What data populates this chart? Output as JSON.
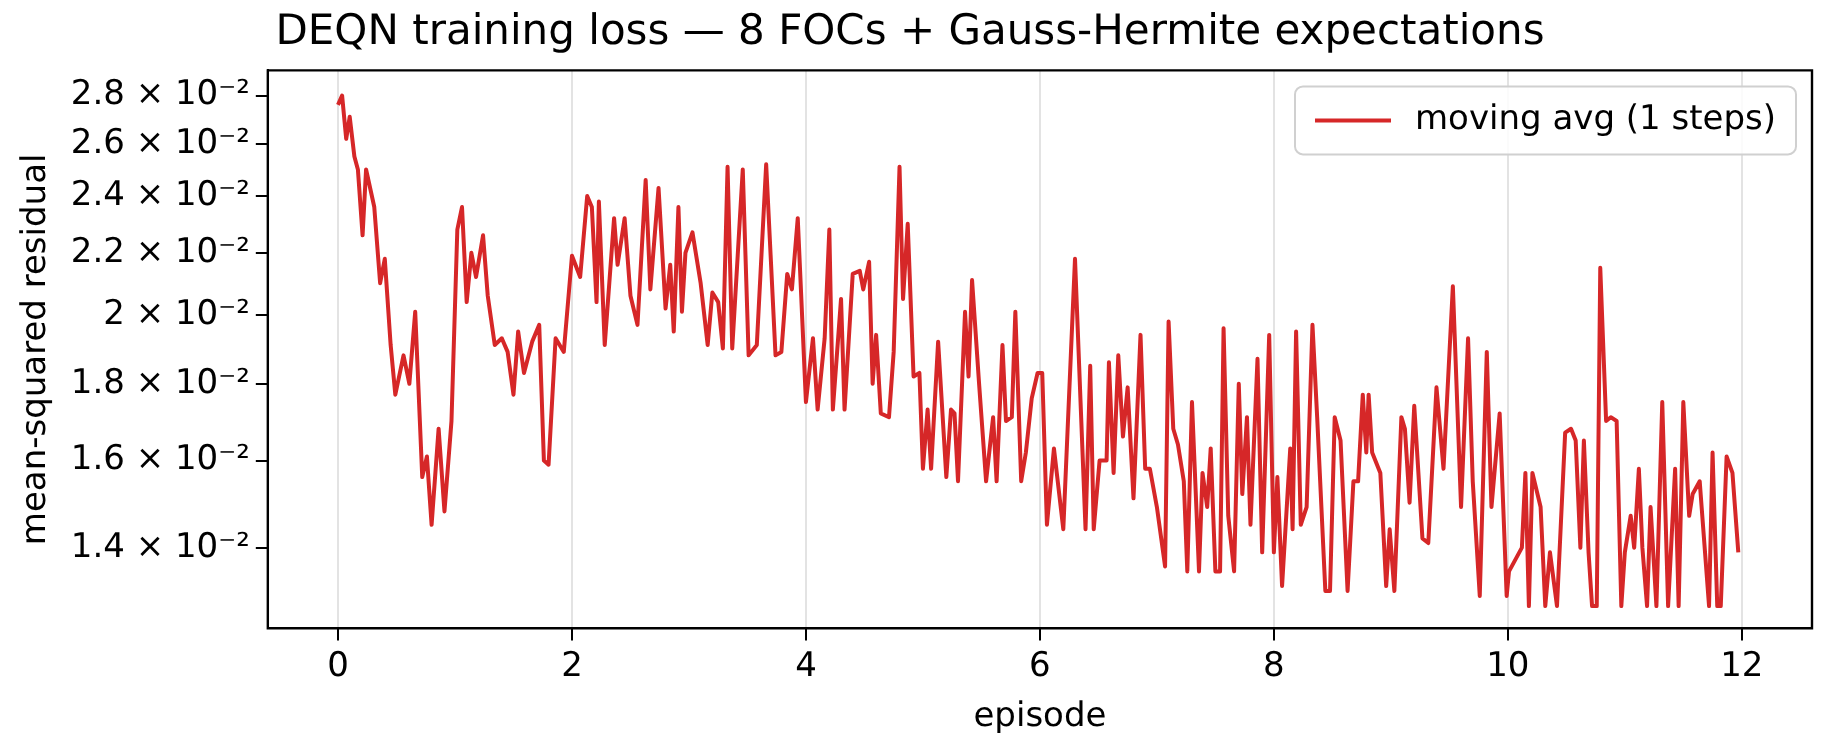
{
  "chart_data": {
    "type": "line",
    "title": "DEQN training loss — 8 FOCs + Gauss-Hermite expectations",
    "xlabel": "episode",
    "ylabel": "mean-squared residual",
    "log": "y",
    "grid": "x",
    "legend": "top right",
    "xlim": [
      -0.6,
      12.6
    ],
    "xticks": [
      0,
      2,
      4,
      6,
      8,
      10,
      12
    ],
    "ylim": [
      0.01237,
      0.0291
    ],
    "yticks": [
      {
        "value": 0.014,
        "label": "1.4 × 10⁻²"
      },
      {
        "value": 0.016,
        "label": "1.6 × 10⁻²"
      },
      {
        "value": 0.018,
        "label": "1.8 × 10⁻²"
      },
      {
        "value": 0.02,
        "label": "2 × 10⁻²"
      },
      {
        "value": 0.022,
        "label": "2.2 × 10⁻²"
      },
      {
        "value": 0.024,
        "label": "2.4 × 10⁻²"
      },
      {
        "value": 0.026,
        "label": "2.6 × 10⁻²"
      },
      {
        "value": 0.028,
        "label": "2.8 × 10⁻²"
      }
    ],
    "series": [
      {
        "name": "moving avg (1 steps)",
        "color": "#d62728",
        "x": [
          0,
          0.035,
          0.07,
          0.1,
          0.14,
          0.17,
          0.21,
          0.24,
          0.31,
          0.36,
          0.4,
          0.45,
          0.49,
          0.56,
          0.61,
          0.66,
          0.72,
          0.76,
          0.8,
          0.86,
          0.91,
          0.97,
          1.02,
          1.06,
          1.1,
          1.14,
          1.18,
          1.24,
          1.28,
          1.34,
          1.4,
          1.45,
          1.5,
          1.54,
          1.59,
          1.66,
          1.72,
          1.76,
          1.8,
          1.86,
          1.93,
          2.0,
          2.07,
          2.13,
          2.17,
          2.21,
          2.23,
          2.28,
          2.36,
          2.39,
          2.45,
          2.5,
          2.56,
          2.63,
          2.67,
          2.74,
          2.8,
          2.84,
          2.87,
          2.91,
          2.94,
          2.97,
          3.03,
          3.1,
          3.16,
          3.2,
          3.25,
          3.29,
          3.33,
          3.37,
          3.46,
          3.51,
          3.58,
          3.66,
          3.74,
          3.79,
          3.84,
          3.88,
          3.93,
          4.0,
          4.06,
          4.1,
          4.16,
          4.2,
          4.23,
          4.3,
          4.33,
          4.4,
          4.46,
          4.49,
          4.54,
          4.57,
          4.6,
          4.64,
          4.71,
          4.75,
          4.8,
          4.83,
          4.87,
          4.92,
          4.97,
          5.0,
          5.04,
          5.07,
          5.13,
          5.2,
          5.24,
          5.27,
          5.3,
          5.36,
          5.39,
          5.42,
          5.48,
          5.54,
          5.6,
          5.63,
          5.68,
          5.71,
          5.76,
          5.79,
          5.84,
          5.88,
          5.93,
          5.98,
          6.02,
          6.06,
          6.12,
          6.2,
          6.3,
          6.35,
          6.39,
          6.43,
          6.46,
          6.51,
          6.57,
          6.59,
          6.63,
          6.67,
          6.71,
          6.75,
          6.8,
          6.86,
          6.9,
          6.94,
          7.0,
          7.07,
          7.1,
          7.14,
          7.18,
          7.23,
          7.26,
          7.3,
          7.36,
          7.39,
          7.43,
          7.46,
          7.5,
          7.54,
          7.57,
          7.61,
          7.66,
          7.7,
          7.73,
          7.77,
          7.8,
          7.86,
          7.9,
          7.96,
          8.0,
          8.03,
          8.07,
          8.14,
          8.16,
          8.19,
          8.23,
          8.28,
          8.33,
          8.37,
          8.44,
          8.48,
          8.52,
          8.57,
          8.63,
          8.68,
          8.72,
          8.76,
          8.79,
          8.81,
          8.84,
          8.91,
          8.96,
          8.99,
          9.03,
          9.09,
          9.12,
          9.16,
          9.2,
          9.27,
          9.32,
          9.39,
          9.45,
          9.53,
          9.6,
          9.66,
          9.7,
          9.76,
          9.82,
          9.86,
          9.93,
          9.99,
          10.01,
          10.12,
          10.15,
          10.18,
          10.21,
          10.28,
          10.32,
          10.36,
          10.42,
          10.49,
          10.54,
          10.58,
          10.62,
          10.65,
          10.69,
          10.72,
          10.76,
          10.79,
          10.84,
          10.88,
          10.93,
          10.97,
          11.0,
          11.05,
          11.08,
          11.12,
          11.15,
          11.19,
          11.22,
          11.27,
          11.32,
          11.37,
          11.43,
          11.46,
          11.5,
          11.55,
          11.58,
          11.64,
          11.72,
          11.75,
          11.79,
          11.82,
          11.87,
          11.92,
          11.97
        ],
        "values": [
          0.0276,
          0.028,
          0.0262,
          0.0271,
          0.0255,
          0.025,
          0.0226,
          0.025,
          0.0236,
          0.021,
          0.0218,
          0.0191,
          0.0177,
          0.0188,
          0.018,
          0.0201,
          0.0156,
          0.0161,
          0.0145,
          0.0168,
          0.0148,
          0.017,
          0.0228,
          0.0236,
          0.0204,
          0.022,
          0.0212,
          0.0226,
          0.0206,
          0.0191,
          0.0193,
          0.0189,
          0.0177,
          0.0195,
          0.0183,
          0.0192,
          0.0197,
          0.016,
          0.0159,
          0.0193,
          0.0189,
          0.0219,
          0.0212,
          0.024,
          0.0236,
          0.0204,
          0.0238,
          0.0191,
          0.0232,
          0.0216,
          0.0232,
          0.0206,
          0.0197,
          0.0246,
          0.0208,
          0.0243,
          0.0202,
          0.0216,
          0.0195,
          0.0236,
          0.0201,
          0.022,
          0.0227,
          0.021,
          0.0191,
          0.0207,
          0.0204,
          0.019,
          0.0251,
          0.019,
          0.025,
          0.0188,
          0.0191,
          0.0252,
          0.0188,
          0.0189,
          0.0213,
          0.0208,
          0.0232,
          0.0175,
          0.0193,
          0.0173,
          0.0193,
          0.0228,
          0.0173,
          0.0205,
          0.0173,
          0.0213,
          0.0214,
          0.0208,
          0.0217,
          0.018,
          0.0194,
          0.0172,
          0.0171,
          0.0189,
          0.0251,
          0.0205,
          0.023,
          0.0182,
          0.0183,
          0.0158,
          0.0173,
          0.0158,
          0.0192,
          0.0156,
          0.0173,
          0.0172,
          0.0155,
          0.0201,
          0.0182,
          0.0211,
          0.018,
          0.0155,
          0.0171,
          0.0155,
          0.0191,
          0.017,
          0.0171,
          0.0201,
          0.0155,
          0.0162,
          0.0176,
          0.0183,
          0.0183,
          0.0145,
          0.0163,
          0.0144,
          0.0218,
          0.0173,
          0.0144,
          0.0185,
          0.0144,
          0.016,
          0.016,
          0.0186,
          0.0157,
          0.0188,
          0.0166,
          0.0179,
          0.0151,
          0.0194,
          0.0158,
          0.0158,
          0.0149,
          0.0136,
          0.0198,
          0.0168,
          0.0164,
          0.0155,
          0.0135,
          0.0175,
          0.0135,
          0.0157,
          0.0149,
          0.0163,
          0.0135,
          0.0135,
          0.0196,
          0.0147,
          0.0135,
          0.018,
          0.0152,
          0.0171,
          0.0145,
          0.0187,
          0.0139,
          0.0194,
          0.0139,
          0.0156,
          0.0132,
          0.0163,
          0.0144,
          0.0195,
          0.0145,
          0.0149,
          0.0197,
          0.0171,
          0.0131,
          0.0131,
          0.0171,
          0.0165,
          0.0131,
          0.0155,
          0.0155,
          0.0177,
          0.0162,
          0.0177,
          0.0162,
          0.0157,
          0.0132,
          0.0144,
          0.0131,
          0.0171,
          0.0168,
          0.015,
          0.0174,
          0.0142,
          0.0141,
          0.0179,
          0.0158,
          0.0209,
          0.0149,
          0.0193,
          0.0155,
          0.013,
          0.0189,
          0.0149,
          0.0172,
          0.013,
          0.0135,
          0.014,
          0.0157,
          0.0128,
          0.0157,
          0.0149,
          0.0128,
          0.0139,
          0.0128,
          0.0167,
          0.0168,
          0.0165,
          0.014,
          0.0165,
          0.0139,
          0.0128,
          0.0128,
          0.0215,
          0.017,
          0.0171,
          0.017,
          0.0128,
          0.0139,
          0.0147,
          0.014,
          0.0158,
          0.014,
          0.0128,
          0.0149,
          0.0128,
          0.0175,
          0.0128,
          0.0158,
          0.0128,
          0.0175,
          0.0147,
          0.0152,
          0.0155,
          0.0128,
          0.0162,
          0.0128,
          0.0128,
          0.0161,
          0.0157,
          0.0139
        ]
      }
    ]
  }
}
